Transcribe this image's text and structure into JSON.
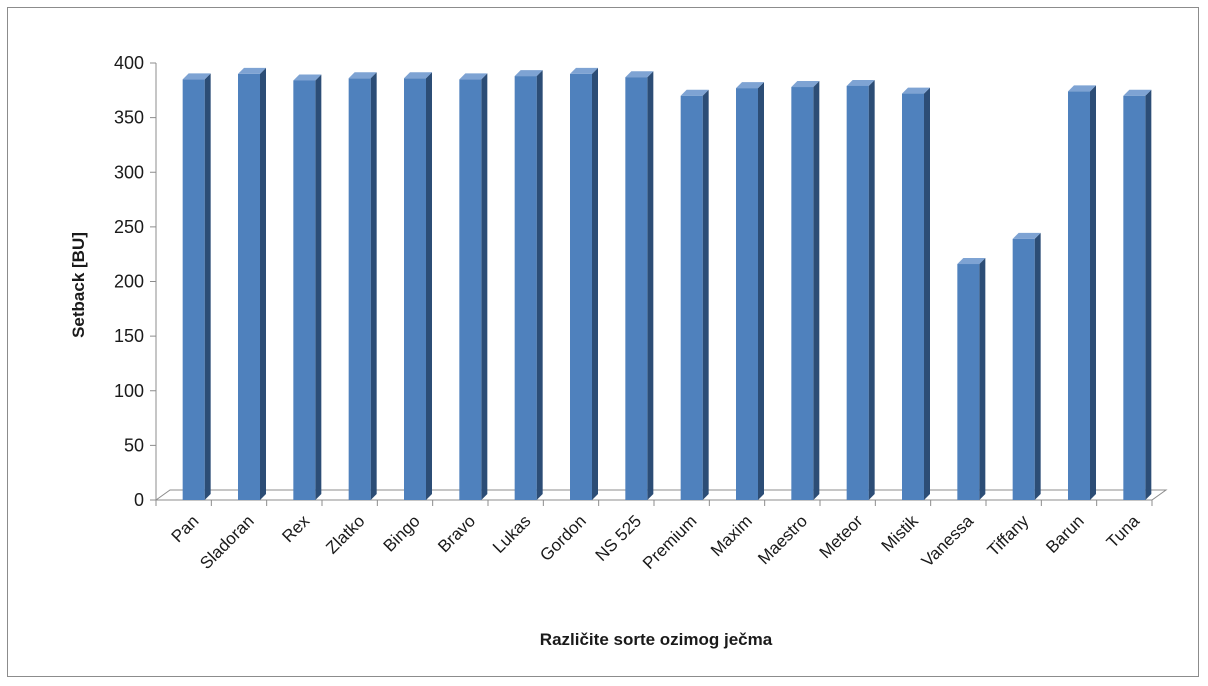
{
  "chart_data": {
    "type": "bar",
    "categories": [
      "Pan",
      "Sladoran",
      "Rex",
      "Zlatko",
      "Bingo",
      "Bravo",
      "Lukas",
      "Gordon",
      "NS 525",
      "Premium",
      "Maxim",
      "Maestro",
      "Meteor",
      "Mistik",
      "Vanessa",
      "Tiffany",
      "Barun",
      "Tuna"
    ],
    "values": [
      385,
      390,
      384,
      386,
      386,
      385,
      388,
      390,
      387,
      370,
      377,
      378,
      379,
      372,
      216,
      239,
      374,
      370
    ],
    "xlabel": "Različite sorte ozimog ječma",
    "ylabel": "Setback [BU]",
    "ylim": [
      0,
      400
    ],
    "yticks": [
      "0",
      "50",
      "100",
      "150",
      "200",
      "250",
      "300",
      "350",
      "400"
    ],
    "grid": false,
    "legend": "none",
    "colors": {
      "front": "#4f81bd",
      "side": "#2c4d76",
      "top": "#7ea3d3",
      "axis": "#8c8c8c"
    }
  }
}
